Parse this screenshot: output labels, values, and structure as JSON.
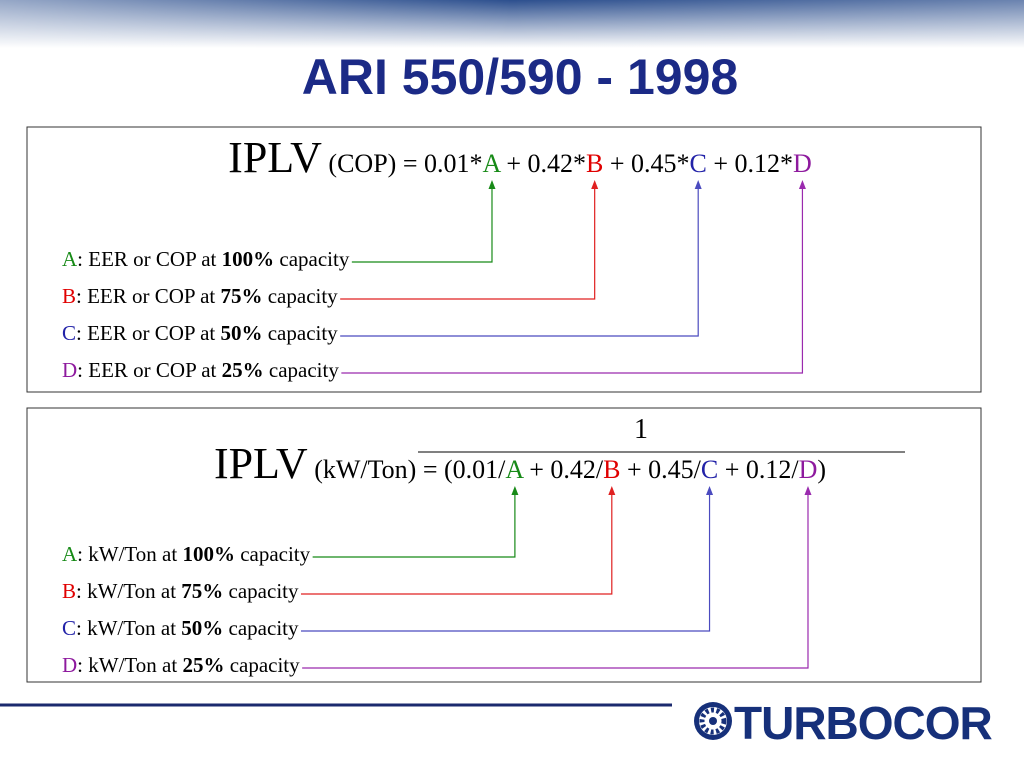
{
  "title": "ARI 550/590 - 1998",
  "box1": {
    "formula": [
      "IPLV",
      " (COP) = 0.01*",
      "A",
      " + 0.42*",
      "B",
      " + 0.45*",
      "C",
      " + 0.12*",
      "D"
    ],
    "definitions": [
      {
        "letter": "A",
        "text": ": EER or COP at ",
        "pct": "100%",
        "tail": " capacity"
      },
      {
        "letter": "B",
        "text": ": EER or COP at ",
        "pct": "75%",
        "tail": " capacity"
      },
      {
        "letter": "C",
        "text": ": EER or COP at ",
        "pct": "50%",
        "tail": " capacity"
      },
      {
        "letter": "D",
        "text": ": EER or COP at ",
        "pct": "25%",
        "tail": " capacity"
      }
    ]
  },
  "box2": {
    "numerator": "1",
    "formula": [
      "IPLV",
      " (kW/Ton) = (0.01/",
      "A",
      " + 0.42/",
      "B",
      " + 0.45/",
      "C",
      " + 0.12/",
      "D",
      ")"
    ],
    "definitions": [
      {
        "letter": "A",
        "text": ": kW/Ton at ",
        "pct": "100%",
        "tail": " capacity"
      },
      {
        "letter": "B",
        "text": ": kW/Ton at ",
        "pct": "75%",
        "tail": " capacity"
      },
      {
        "letter": "C",
        "text": ": kW/Ton at ",
        "pct": "50%",
        "tail": " capacity"
      },
      {
        "letter": "D",
        "text": ": kW/Ton at ",
        "pct": "25%",
        "tail": " capacity"
      }
    ]
  },
  "logo": "TURBOCOR"
}
